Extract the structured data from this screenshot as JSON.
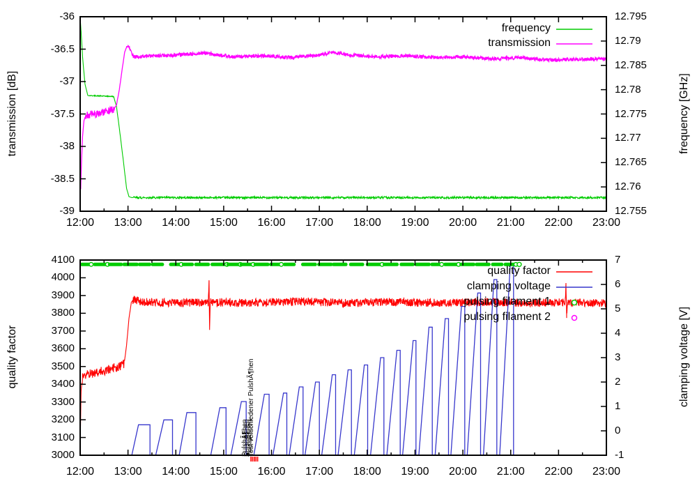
{
  "chart_data": [
    {
      "type": "line",
      "panel": "top",
      "x_axis": {
        "tick_labels": [
          "12:00",
          "13:00",
          "14:00",
          "15:00",
          "16:00",
          "17:00",
          "18:00",
          "19:00",
          "20:00",
          "21:00",
          "22:00",
          "23:00"
        ],
        "tick_hours": [
          12,
          13,
          14,
          15,
          16,
          17,
          18,
          19,
          20,
          21,
          22,
          23
        ],
        "minor_step_hours": 0.5,
        "range_hours": [
          12,
          23
        ]
      },
      "left_axis": {
        "label": "transmission [dB]",
        "range": [
          -39,
          -36
        ],
        "ticks": [
          {
            "label": "-36",
            "value": -36
          },
          {
            "label": "-36.5",
            "value": -36.5
          },
          {
            "label": "-37",
            "value": -37
          },
          {
            "label": "-37.5",
            "value": -37.5
          },
          {
            "label": "-38",
            "value": -38
          },
          {
            "label": "-38.5",
            "value": -38.5
          },
          {
            "label": "-39",
            "value": -39
          }
        ]
      },
      "right_axis": {
        "label": "frequency [GHz]",
        "range": [
          12.755,
          12.795
        ],
        "ticks": [
          {
            "label": "12.795",
            "value": 12.795
          },
          {
            "label": "12.79",
            "value": 12.79
          },
          {
            "label": "12.785",
            "value": 12.785
          },
          {
            "label": "12.78",
            "value": 12.78
          },
          {
            "label": "12.775",
            "value": 12.775
          },
          {
            "label": "12.77",
            "value": 12.77
          },
          {
            "label": "12.765",
            "value": 12.765
          },
          {
            "label": "12.76",
            "value": 12.76
          },
          {
            "label": "12.755",
            "value": 12.755
          }
        ]
      },
      "legend": [
        {
          "label": "frequency",
          "color": "#00cc00",
          "sample": "line"
        },
        {
          "label": "transmission",
          "color": "#ff00ff",
          "sample": "line"
        }
      ],
      "series": [
        {
          "name": "frequency",
          "axis": "right",
          "color": "#00cc00",
          "width": 1.1,
          "points": [
            [
              12.0,
              12.7948
            ],
            [
              12.02,
              12.792
            ],
            [
              12.05,
              12.7868
            ],
            [
              12.1,
              12.7812
            ],
            [
              12.16,
              12.7788
            ],
            [
              12.7,
              12.7786
            ],
            [
              12.76,
              12.7765
            ],
            [
              12.82,
              12.772
            ],
            [
              12.9,
              12.7656
            ],
            [
              12.97,
              12.7597
            ],
            [
              13.02,
              12.758
            ],
            [
              13.08,
              12.7578
            ],
            [
              23.0,
              12.7578
            ]
          ],
          "noise": [
            [
              12.18,
              12.7,
              9e-05
            ],
            [
              13.1,
              23.0,
              0.00022
            ]
          ]
        },
        {
          "name": "transmission",
          "axis": "left",
          "color": "#ff00ff",
          "width": 1.3,
          "points": [
            [
              12.0,
              -38.52
            ],
            [
              12.012,
              -38.66
            ],
            [
              12.03,
              -38.2
            ],
            [
              12.05,
              -37.85
            ],
            [
              12.08,
              -37.6
            ],
            [
              12.12,
              -37.52
            ],
            [
              12.3,
              -37.5
            ],
            [
              12.5,
              -37.47
            ],
            [
              12.7,
              -37.43
            ],
            [
              12.76,
              -37.36
            ],
            [
              12.82,
              -37.12
            ],
            [
              12.88,
              -36.8
            ],
            [
              12.93,
              -36.55
            ],
            [
              12.97,
              -36.46
            ],
            [
              13.0,
              -36.44
            ],
            [
              13.06,
              -36.52
            ],
            [
              13.12,
              -36.62
            ],
            [
              13.4,
              -36.61
            ],
            [
              14.0,
              -36.59
            ],
            [
              14.6,
              -36.56
            ],
            [
              15.2,
              -36.62
            ],
            [
              15.8,
              -36.6
            ],
            [
              16.4,
              -36.63
            ],
            [
              17.0,
              -36.59
            ],
            [
              17.3,
              -36.55
            ],
            [
              17.6,
              -36.59
            ],
            [
              18.2,
              -36.62
            ],
            [
              18.8,
              -36.6
            ],
            [
              19.4,
              -36.63
            ],
            [
              20.0,
              -36.62
            ],
            [
              20.6,
              -36.65
            ],
            [
              21.2,
              -36.63
            ],
            [
              21.8,
              -36.67
            ],
            [
              22.4,
              -36.66
            ],
            [
              23.0,
              -36.65
            ]
          ],
          "noise": [
            [
              12.1,
              12.72,
              0.055
            ],
            [
              12.95,
              13.05,
              0.018
            ],
            [
              13.08,
              23.0,
              0.028
            ]
          ]
        }
      ]
    },
    {
      "type": "line",
      "panel": "bottom",
      "x_axis": {
        "tick_labels": [
          "12:00",
          "13:00",
          "14:00",
          "15:00",
          "16:00",
          "17:00",
          "18:00",
          "19:00",
          "20:00",
          "21:00",
          "22:00",
          "23:00"
        ],
        "tick_hours": [
          12,
          13,
          14,
          15,
          16,
          17,
          18,
          19,
          20,
          21,
          22,
          23
        ],
        "minor_step_hours": 0.5,
        "range_hours": [
          12,
          23
        ]
      },
      "left_axis": {
        "label": "quality factor",
        "range": [
          3000,
          4100
        ],
        "ticks": [
          {
            "label": "4100",
            "value": 4100
          },
          {
            "label": "4000",
            "value": 4000
          },
          {
            "label": "3900",
            "value": 3900
          },
          {
            "label": "3800",
            "value": 3800
          },
          {
            "label": "3700",
            "value": 3700
          },
          {
            "label": "3600",
            "value": 3600
          },
          {
            "label": "3500",
            "value": 3500
          },
          {
            "label": "3400",
            "value": 3400
          },
          {
            "label": "3300",
            "value": 3300
          },
          {
            "label": "3200",
            "value": 3200
          },
          {
            "label": "3100",
            "value": 3100
          },
          {
            "label": "3000",
            "value": 3000
          }
        ]
      },
      "right_axis": {
        "label": "clamping voltage [V]",
        "range": [
          -1,
          7
        ],
        "ticks": [
          {
            "label": "7",
            "value": 7
          },
          {
            "label": "6",
            "value": 6
          },
          {
            "label": "5",
            "value": 5
          },
          {
            "label": "4",
            "value": 4
          },
          {
            "label": "3",
            "value": 3
          },
          {
            "label": "2",
            "value": 2
          },
          {
            "label": "1",
            "value": 1
          },
          {
            "label": "0",
            "value": 0
          },
          {
            "label": "-1",
            "value": -1
          }
        ]
      },
      "legend": [
        {
          "label": "quality factor",
          "color": "#ff0000",
          "sample": "line"
        },
        {
          "label": "clamping voltage",
          "color": "#3737cc",
          "sample": "line"
        },
        {
          "label": "pulsing filament 1",
          "color": "#00cc00",
          "sample": "circle"
        },
        {
          "label": "pulsing filament 2",
          "color": "#ff00ff",
          "sample": "circle"
        }
      ],
      "series": [
        {
          "name": "quality factor",
          "axis": "left",
          "color": "#ff0000",
          "width": 1.1,
          "points": [
            [
              12.0,
              3040
            ],
            [
              12.02,
              3360
            ],
            [
              12.05,
              3450
            ],
            [
              12.3,
              3465
            ],
            [
              12.55,
              3480
            ],
            [
              12.8,
              3500
            ],
            [
              12.92,
              3515
            ],
            [
              12.97,
              3620
            ],
            [
              13.02,
              3770
            ],
            [
              13.07,
              3862
            ],
            [
              13.12,
              3880
            ],
            [
              13.25,
              3865
            ],
            [
              14.0,
              3858
            ],
            [
              14.68,
              3862
            ],
            [
              14.695,
              3995
            ],
            [
              14.705,
              3700
            ],
            [
              14.72,
              3862
            ],
            [
              15.5,
              3858
            ],
            [
              16.5,
              3868
            ],
            [
              17.5,
              3858
            ],
            [
              18.5,
              3864
            ],
            [
              19.5,
              3858
            ],
            [
              20.5,
              3864
            ],
            [
              21.5,
              3858
            ],
            [
              22.14,
              3862
            ],
            [
              22.155,
              3958
            ],
            [
              22.17,
              3795
            ],
            [
              22.19,
              3862
            ],
            [
              23.0,
              3856
            ]
          ],
          "noise": [
            [
              12.04,
              12.93,
              26
            ],
            [
              13.1,
              23.0,
              23
            ]
          ]
        }
      ],
      "pulses": {
        "name": "clamping voltage",
        "axis": "right",
        "color": "#3737cc",
        "width": 1.3,
        "baseline_v": -1,
        "teeth": [
          [
            13.08,
            13.22,
            13.46,
            0.25
          ],
          [
            13.58,
            13.75,
            13.93,
            0.45
          ],
          [
            14.07,
            14.23,
            14.42,
            0.75
          ],
          [
            14.73,
            14.92,
            15.05,
            0.95
          ],
          [
            15.15,
            15.37,
            15.47,
            1.2
          ],
          [
            15.63,
            15.85,
            15.95,
            1.5
          ],
          [
            16.03,
            16.25,
            16.32,
            1.55
          ],
          [
            16.37,
            16.58,
            16.66,
            1.8
          ],
          [
            16.7,
            16.92,
            17.0,
            2.0
          ],
          [
            17.05,
            17.27,
            17.34,
            2.3
          ],
          [
            17.39,
            17.6,
            17.67,
            2.5
          ],
          [
            17.73,
            17.94,
            18.01,
            2.7
          ],
          [
            18.07,
            18.28,
            18.35,
            3.0
          ],
          [
            18.41,
            18.62,
            18.69,
            3.3
          ],
          [
            18.74,
            18.96,
            19.02,
            3.7
          ],
          [
            19.08,
            19.29,
            19.36,
            4.25
          ],
          [
            19.42,
            19.63,
            19.7,
            4.6
          ],
          [
            19.75,
            19.97,
            20.04,
            5.1
          ],
          [
            20.09,
            20.31,
            20.37,
            5.65
          ],
          [
            20.43,
            20.65,
            20.71,
            6.2
          ],
          [
            20.77,
            20.99,
            21.06,
            6.8
          ]
        ]
      },
      "filament1_row": {
        "name": "pulsing filament 1",
        "axis": "right",
        "color": "#00cc00",
        "value": 6.82,
        "t_start": 12.03,
        "t_end": 21.12,
        "style": "thick-dashes-with-circles"
      },
      "filament2_points": [],
      "annotations": {
        "vertical_labels": [
          {
            "text": "Test verschiedener PulshÃ¶hen",
            "t": 15.72
          },
          {
            "text": "PulshÃ¶hen",
            "t": 15.58
          },
          {
            "text": "PulshÃ¶hen",
            "t": 15.63
          },
          {
            "text": "PulshÃ¶hen",
            "t": 15.68
          }
        ],
        "axis_marks": {
          "color": "#ff0000",
          "t": [
            15.57,
            15.605,
            15.64,
            15.675,
            15.71
          ]
        }
      }
    }
  ],
  "colors": {
    "frequency_green": "#00cc00",
    "transmission_magenta": "#ff00ff",
    "quality_red": "#ff0000",
    "clamping_blue": "#3737cc",
    "filament2_magenta": "#ff00ff",
    "axis_black": "#000000",
    "background": "#ffffff"
  }
}
